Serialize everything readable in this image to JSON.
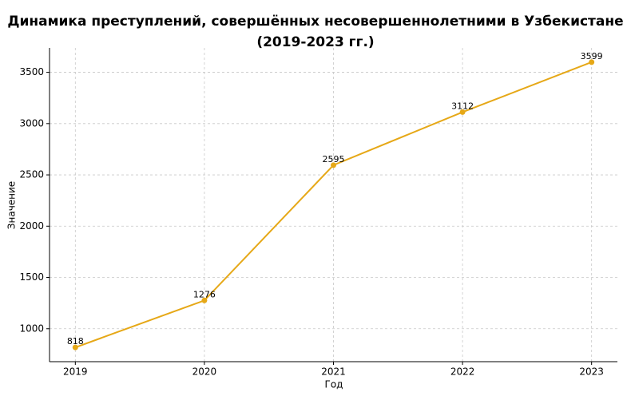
{
  "chart_data": {
    "type": "line",
    "title": [
      "Динамика преступлений, совершённых несовершеннолетними в Узбекистане",
      "(2019-2023 гг.)"
    ],
    "x_label": "Год",
    "y_label": "Значение",
    "x": [
      2019,
      2020,
      2021,
      2022,
      2023
    ],
    "series": [
      {
        "name": "Значение",
        "color": "#e6a817",
        "values": [
          818,
          1276,
          2595,
          3112,
          3599
        ]
      }
    ],
    "xlim": [
      2018.8,
      2023.2
    ],
    "xticks": [
      2019,
      2020,
      2021,
      2022,
      2023
    ],
    "ylim": [
      679,
      3738
    ],
    "yticks": [
      1000,
      1500,
      2000,
      2500,
      3000,
      3500
    ],
    "grid": true,
    "data_labels": true
  }
}
